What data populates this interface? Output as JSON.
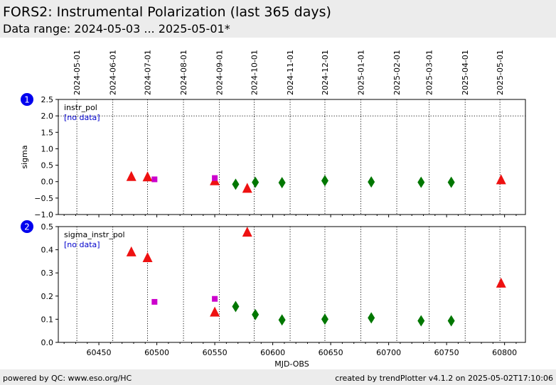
{
  "header": {
    "title": "FORS2: Instrumental Polarization (last 365 days)",
    "subtitle": "Data range: 2024-05-03 ... 2025-05-01*"
  },
  "footer": {
    "left": "powered by QC: www.eso.org/HC",
    "right": "created by trendPlotter v4.1.2 on 2025-05-02T17:10:06"
  },
  "colors": {
    "red": "#ee1111",
    "magenta": "#cc00cc",
    "green": "#007700",
    "badge": "#0000ee",
    "nodata": "#0000cc"
  },
  "chart_data": {
    "type": "scatter",
    "xlabel": "MJD-OBS",
    "xlim": [
      60415,
      60818
    ],
    "x_ticks": [
      60450,
      60500,
      60550,
      60600,
      60650,
      60700,
      60750,
      60800
    ],
    "date_lines": [
      {
        "label": "2024-05-01",
        "mjd": 60431
      },
      {
        "label": "2024-06-01",
        "mjd": 60462
      },
      {
        "label": "2024-07-01",
        "mjd": 60492
      },
      {
        "label": "2024-08-01",
        "mjd": 60523
      },
      {
        "label": "2024-09-01",
        "mjd": 60554
      },
      {
        "label": "2024-10-01",
        "mjd": 60584
      },
      {
        "label": "2024-11-01",
        "mjd": 60615
      },
      {
        "label": "2024-12-01",
        "mjd": 60645
      },
      {
        "label": "2025-01-01",
        "mjd": 60676
      },
      {
        "label": "2025-02-01",
        "mjd": 60707
      },
      {
        "label": "2025-03-01",
        "mjd": 60735
      },
      {
        "label": "2025-04-01",
        "mjd": 60766
      },
      {
        "label": "2025-05-01",
        "mjd": 60796
      }
    ],
    "panels": [
      {
        "badge": "1",
        "name": "instr_pol",
        "nodata": "[no data]",
        "ylabel": "sigma",
        "ylim": [
          -1.0,
          2.5
        ],
        "yticks": [
          -1.0,
          -0.5,
          0.0,
          0.5,
          1.0,
          1.5,
          2.0,
          2.5
        ],
        "ytick_labels": [
          "−1.0",
          "−0.5",
          "0.0",
          "0.5",
          "1.0",
          "1.5",
          "2.0",
          "2.5"
        ],
        "hline": 2.0,
        "series": [
          {
            "marker": "triangle",
            "color": "red",
            "points": [
              [
                60478,
                0.15
              ],
              [
                60492,
                0.14
              ],
              [
                60550,
                0.02
              ],
              [
                60578,
                -0.21
              ],
              [
                60797,
                0.05
              ]
            ]
          },
          {
            "marker": "square",
            "color": "magenta",
            "points": [
              [
                60498,
                0.07
              ],
              [
                60550,
                0.11
              ]
            ]
          },
          {
            "marker": "diamond",
            "color": "green",
            "points": [
              [
                60568,
                -0.08
              ],
              [
                60585,
                -0.02
              ],
              [
                60608,
                -0.03
              ],
              [
                60645,
                0.03
              ],
              [
                60685,
                -0.01
              ],
              [
                60728,
                -0.02
              ],
              [
                60754,
                -0.02
              ]
            ]
          }
        ]
      },
      {
        "badge": "2",
        "name": "sigma_instr_pol",
        "nodata": "[no data]",
        "ylabel": "",
        "ylim": [
          0.0,
          0.5
        ],
        "yticks": [
          0.0,
          0.1,
          0.2,
          0.3,
          0.4,
          0.5
        ],
        "ytick_labels": [
          "0.0",
          "0.1",
          "0.2",
          "0.3",
          "0.4",
          "0.5"
        ],
        "hline": null,
        "series": [
          {
            "marker": "triangle",
            "color": "red",
            "points": [
              [
                60478,
                0.39
              ],
              [
                60492,
                0.365
              ],
              [
                60550,
                0.13
              ],
              [
                60578,
                0.475
              ],
              [
                60797,
                0.255
              ]
            ]
          },
          {
            "marker": "square",
            "color": "magenta",
            "points": [
              [
                60498,
                0.175
              ],
              [
                60550,
                0.188
              ]
            ]
          },
          {
            "marker": "diamond",
            "color": "green",
            "points": [
              [
                60568,
                0.155
              ],
              [
                60585,
                0.12
              ],
              [
                60608,
                0.097
              ],
              [
                60645,
                0.1
              ],
              [
                60685,
                0.106
              ],
              [
                60728,
                0.093
              ],
              [
                60754,
                0.093
              ]
            ]
          }
        ]
      }
    ]
  }
}
